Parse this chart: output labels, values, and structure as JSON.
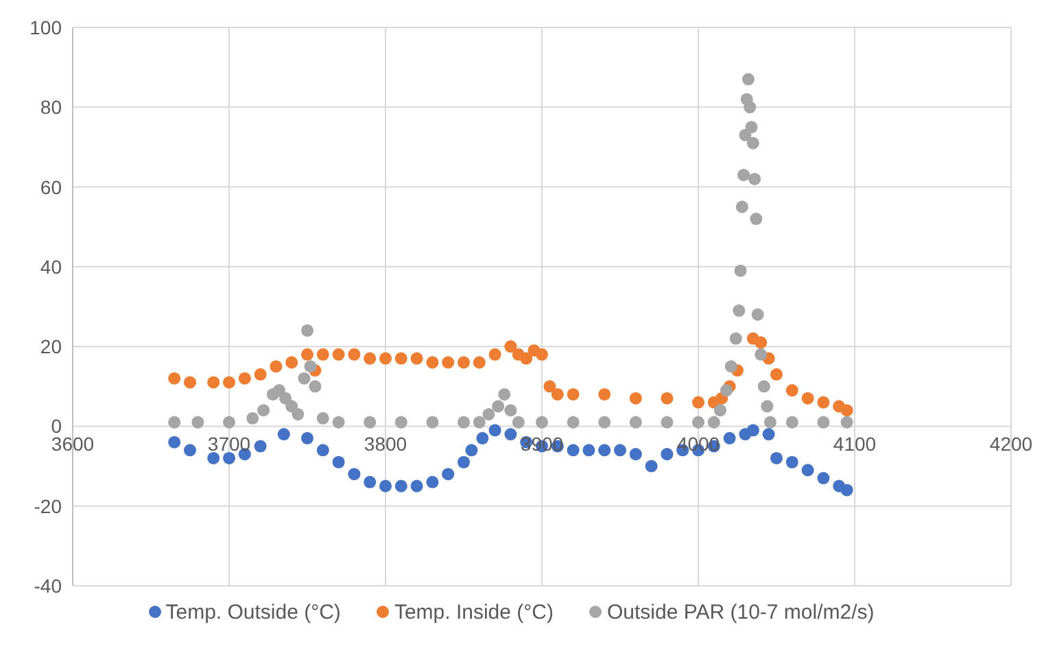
{
  "chart_data": {
    "type": "scatter",
    "xlim": [
      3600,
      4200
    ],
    "xticks": [
      3600,
      3700,
      3800,
      3900,
      4000,
      4100,
      4200
    ],
    "ylim": [
      -40,
      100
    ],
    "yticks": [
      -40,
      -20,
      0,
      20,
      40,
      60,
      80,
      100
    ],
    "grid": true,
    "legend": "bottom",
    "marker": "circle",
    "series": [
      {
        "name": "Temp. Outside (°C)",
        "color": "#4472c4",
        "x": [
          3665,
          3675,
          3690,
          3700,
          3710,
          3720,
          3735,
          3750,
          3760,
          3770,
          3780,
          3790,
          3800,
          3810,
          3820,
          3830,
          3840,
          3850,
          3855,
          3862,
          3870,
          3880,
          3890,
          3900,
          3910,
          3920,
          3930,
          3940,
          3950,
          3960,
          3970,
          3980,
          3990,
          4000,
          4010,
          4020,
          4030,
          4035,
          4045,
          4050,
          4060,
          4070,
          4080,
          4090,
          4095
        ],
        "values": [
          -4,
          -6,
          -8,
          -8,
          -7,
          -5,
          -2,
          -3,
          -6,
          -9,
          -12,
          -14,
          -15,
          -15,
          -15,
          -14,
          -12,
          -9,
          -6,
          -3,
          -1,
          -2,
          -4,
          -5,
          -5,
          -6,
          -6,
          -6,
          -6,
          -7,
          -10,
          -7,
          -6,
          -6,
          -5,
          -3,
          -2,
          -1,
          -2,
          -8,
          -9,
          -11,
          -13,
          -15,
          -16
        ]
      },
      {
        "name": "Temp. Inside (°C)",
        "color": "#ed7d31",
        "x": [
          3665,
          3675,
          3690,
          3700,
          3710,
          3720,
          3730,
          3740,
          3750,
          3755,
          3760,
          3770,
          3780,
          3790,
          3800,
          3810,
          3820,
          3830,
          3840,
          3850,
          3860,
          3870,
          3880,
          3885,
          3890,
          3895,
          3900,
          3905,
          3910,
          3920,
          3940,
          3960,
          3980,
          4000,
          4010,
          4015,
          4020,
          4025,
          4030,
          4035,
          4040,
          4045,
          4050,
          4060,
          4070,
          4080,
          4090,
          4095
        ],
        "values": [
          12,
          11,
          11,
          11,
          12,
          13,
          15,
          16,
          18,
          14,
          18,
          18,
          18,
          17,
          17,
          17,
          17,
          16,
          16,
          16,
          16,
          18,
          20,
          18,
          17,
          19,
          18,
          10,
          8,
          8,
          8,
          7,
          7,
          6,
          6,
          7,
          10,
          14,
          null,
          22,
          21,
          17,
          13,
          9,
          7,
          6,
          5,
          4
        ]
      },
      {
        "name": "Outside PAR (10-7 mol/m2/s)",
        "color": "#a5a5a5",
        "x": [
          3665,
          3680,
          3700,
          3715,
          3722,
          3728,
          3732,
          3736,
          3740,
          3744,
          3748,
          3750,
          3752,
          3755,
          3760,
          3770,
          3790,
          3810,
          3830,
          3850,
          3860,
          3866,
          3872,
          3876,
          3880,
          3885,
          3900,
          3920,
          3940,
          3960,
          3980,
          4000,
          4010,
          4014,
          4018,
          4021,
          4024,
          4026,
          4027,
          4028,
          4029,
          4030,
          4031,
          4032,
          4033,
          4034,
          4035,
          4036,
          4037,
          4038,
          4040,
          4042,
          4044,
          4046,
          4060,
          4080,
          4095
        ],
        "values": [
          1,
          1,
          1,
          2,
          4,
          8,
          9,
          7,
          5,
          3,
          12,
          24,
          15,
          10,
          2,
          1,
          1,
          1,
          1,
          1,
          1,
          3,
          5,
          8,
          4,
          1,
          1,
          1,
          1,
          1,
          1,
          1,
          1,
          4,
          9,
          15,
          22,
          29,
          39,
          55,
          63,
          73,
          82,
          87,
          80,
          75,
          71,
          62,
          52,
          28,
          18,
          10,
          5,
          1,
          1,
          1,
          1
        ]
      }
    ]
  }
}
